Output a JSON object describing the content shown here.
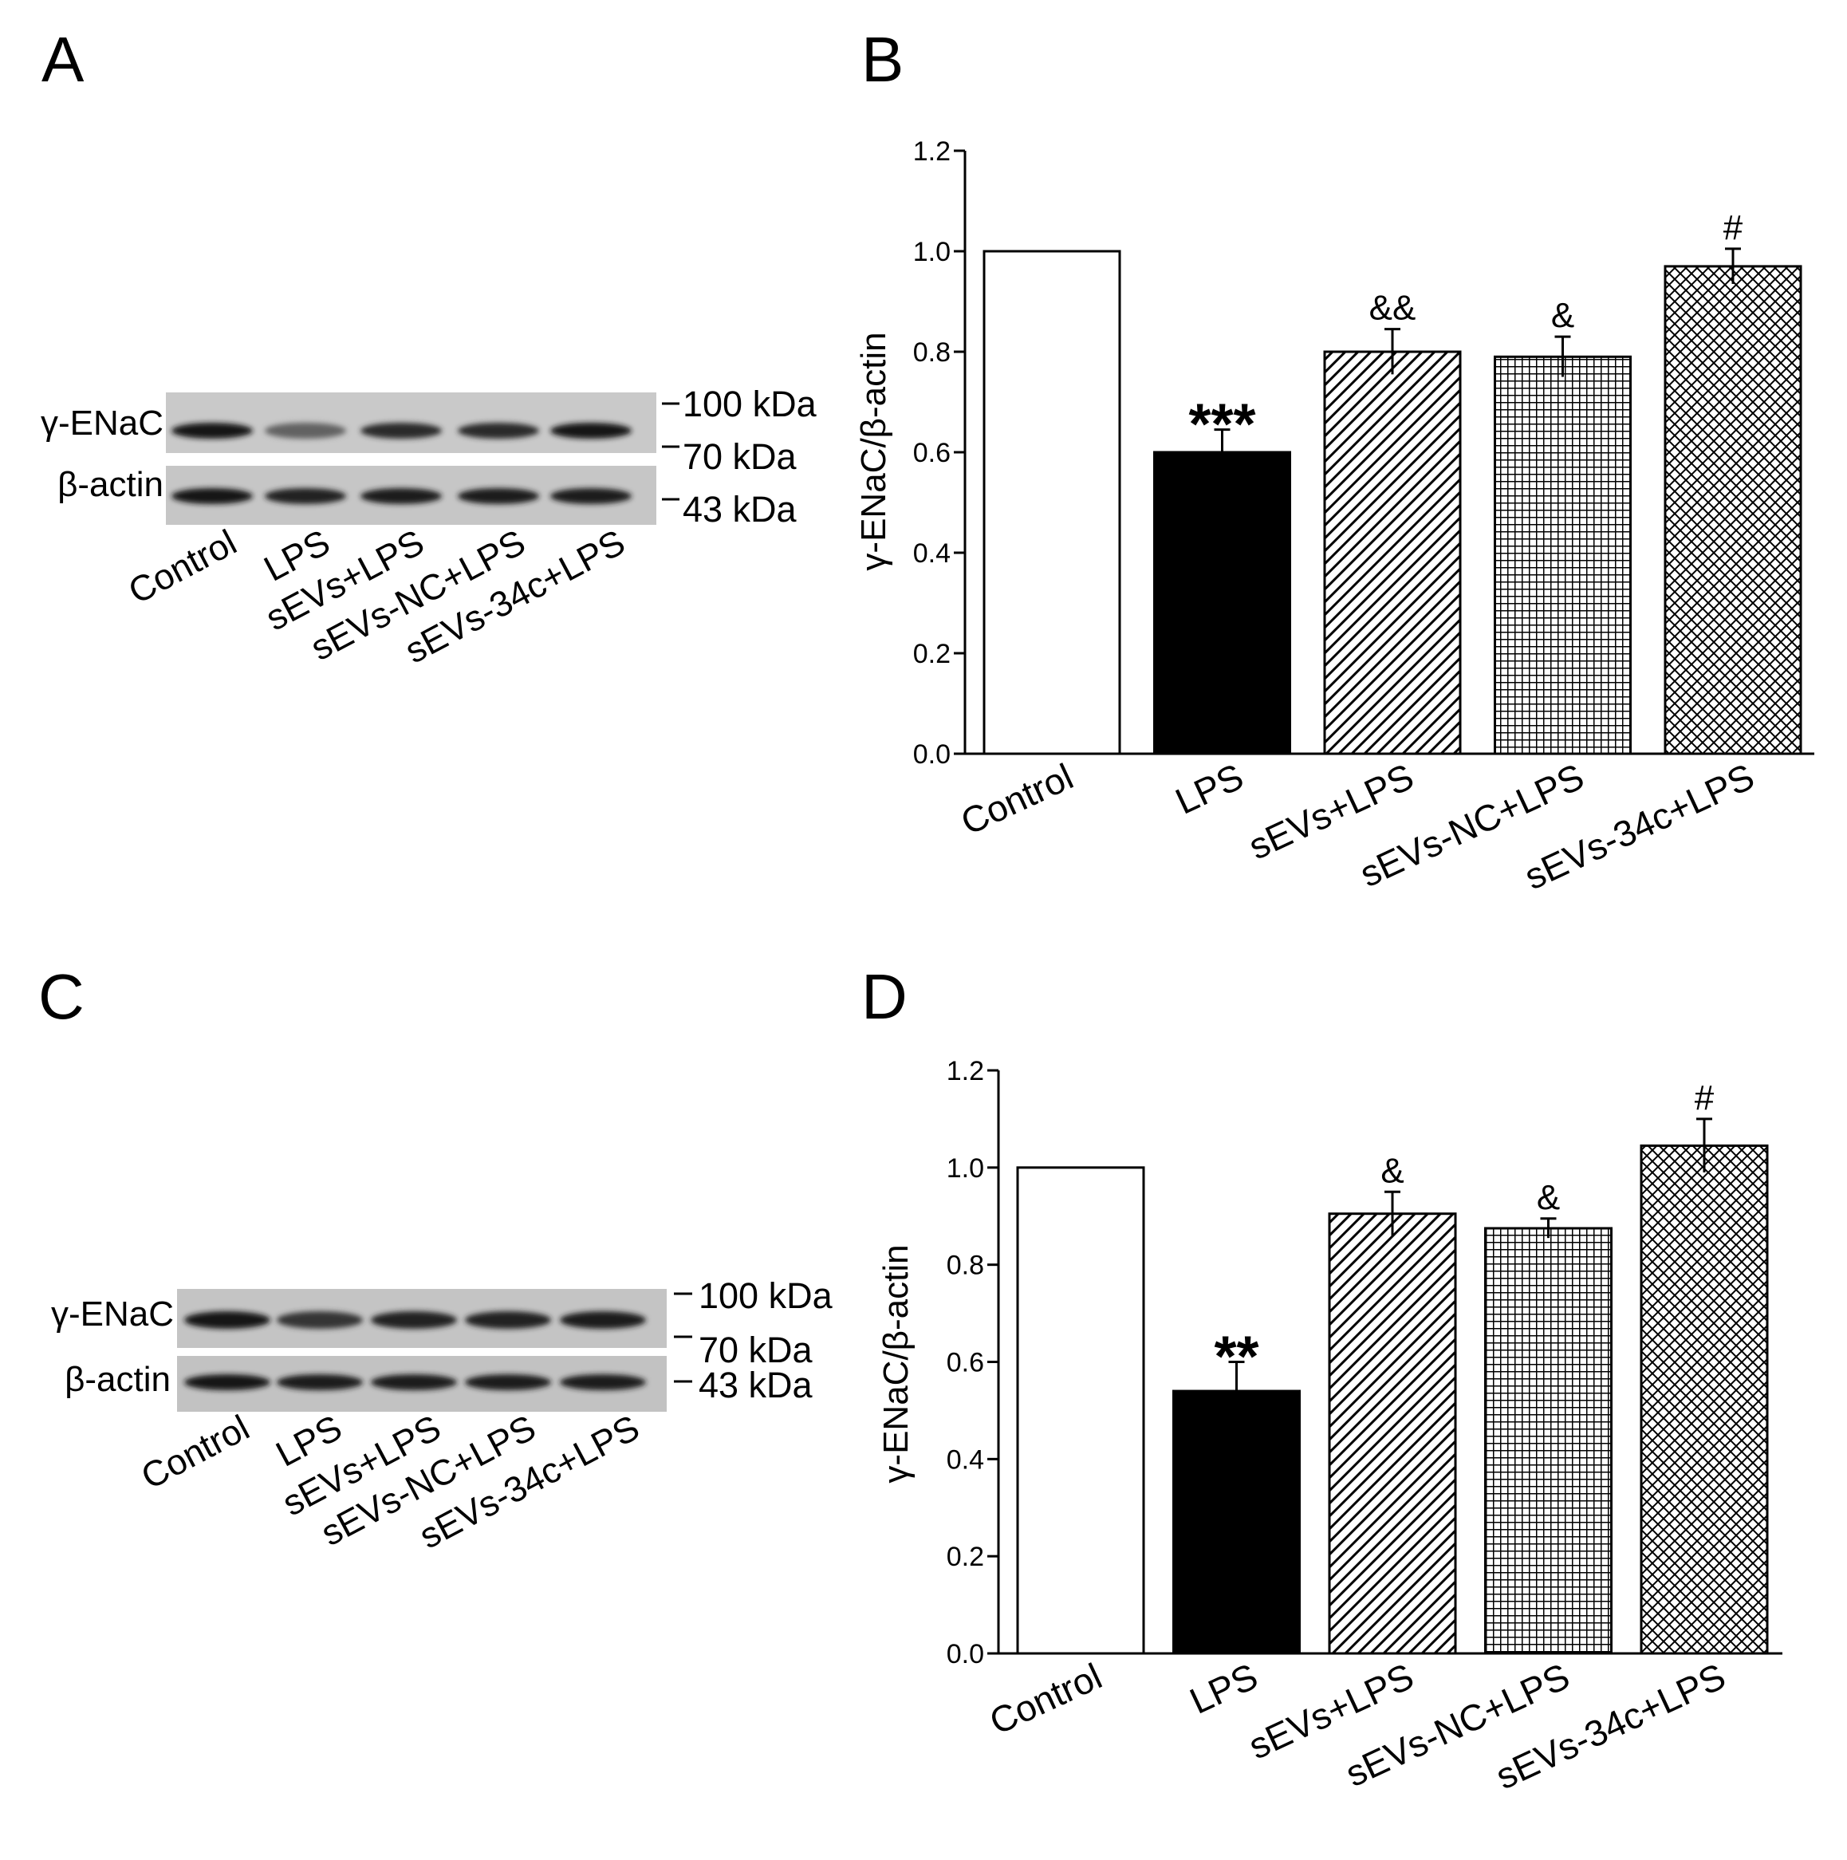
{
  "panels": {
    "a": {
      "letter": "A",
      "rows": [
        "γ-ENaC",
        "β-actin"
      ],
      "markers": [
        "100 kDa",
        "70 kDa",
        "43 kDa"
      ],
      "lanes": [
        "Control",
        "LPS",
        "sEVs+LPS",
        "sEVs-NC+LPS",
        "sEVs-34c+LPS"
      ],
      "band_intensity": {
        "gamma_enac": [
          0.95,
          0.6,
          0.85,
          0.85,
          0.95
        ],
        "beta_actin": [
          0.95,
          0.9,
          0.92,
          0.92,
          0.92
        ]
      }
    },
    "c": {
      "letter": "C",
      "rows": [
        "γ-ENaC",
        "β-actin"
      ],
      "markers": [
        "100 kDa",
        "70 kDa",
        "43 kDa"
      ],
      "lanes": [
        "Control",
        "LPS",
        "sEVs+LPS",
        "sEVs-NC+LPS",
        "sEVs-34c+LPS"
      ],
      "band_intensity": {
        "gamma_enac": [
          0.95,
          0.8,
          0.9,
          0.9,
          0.92
        ],
        "beta_actin": [
          0.95,
          0.92,
          0.92,
          0.92,
          0.92
        ]
      }
    }
  },
  "chart_data": [
    {
      "letter": "B",
      "type": "bar",
      "title": "",
      "xlabel": "",
      "ylabel": "γ-ENaC/β-actin",
      "ylim": [
        0,
        1.2
      ],
      "yticks": [
        "0.0",
        "0.2",
        "0.4",
        "0.6",
        "0.8",
        "1.0",
        "1.2"
      ],
      "categories": [
        "Control",
        "LPS",
        "sEVs+LPS",
        "sEVs-NC+LPS",
        "sEVs-34c+LPS"
      ],
      "values": [
        1.0,
        0.6,
        0.8,
        0.79,
        0.97
      ],
      "errors": [
        0,
        0.045,
        0.045,
        0.04,
        0.035
      ],
      "patterns": [
        "white",
        "black",
        "diagonal",
        "grid",
        "crosshatch"
      ],
      "annotations": [
        "",
        "***",
        "&&",
        "&",
        "#"
      ],
      "grid": false,
      "legend": "none"
    },
    {
      "letter": "D",
      "type": "bar",
      "title": "",
      "xlabel": "",
      "ylabel": "γ-ENaC/β-actin",
      "ylim": [
        0,
        1.2
      ],
      "yticks": [
        "0.0",
        "0.2",
        "0.4",
        "0.6",
        "0.8",
        "1.0",
        "1.2"
      ],
      "categories": [
        "Control",
        "LPS",
        "sEVs+LPS",
        "sEVs-NC+LPS",
        "sEVs-34c+LPS"
      ],
      "values": [
        1.0,
        0.54,
        0.905,
        0.875,
        1.045
      ],
      "errors": [
        0,
        0.06,
        0.045,
        0.02,
        0.055
      ],
      "patterns": [
        "white",
        "black",
        "diagonal",
        "grid",
        "crosshatch"
      ],
      "annotations": [
        "",
        "**",
        "&",
        "&",
        "#"
      ],
      "grid": false,
      "legend": "none"
    }
  ]
}
